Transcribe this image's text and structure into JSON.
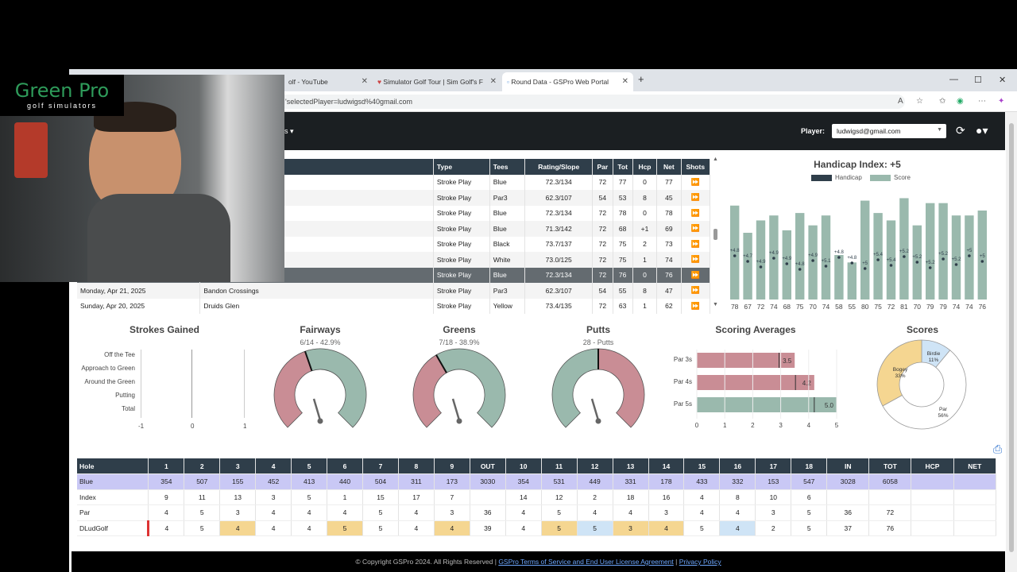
{
  "browser": {
    "tabs": [
      {
        "label": "olf - YouTube"
      },
      {
        "label": "Simulator Golf Tour | Sim Golf's F"
      },
      {
        "label": "Round Data - GSPro Web Portal"
      }
    ],
    "url": "'selectedPlayer=ludwigsd%40gmail.com"
  },
  "header": {
    "menu_fragment": "s ▾",
    "player_label": "Player:",
    "player_value": "ludwigsd@gmail.com"
  },
  "overlay": {
    "logo_main": "Green Pro",
    "logo_sub": "golf simulators"
  },
  "rounds": {
    "headers": [
      "Type",
      "Tees",
      "Rating/Slope",
      "Par",
      "Tot",
      "Hcp",
      "Net",
      "Shots"
    ],
    "rows": [
      {
        "date": "",
        "course": "",
        "type": "Stroke Play",
        "tees": "Blue",
        "rating": "72.3/134",
        "par": "72",
        "tot": "77",
        "hcp": "0",
        "net": "77",
        "shots": "⏩"
      },
      {
        "date": "",
        "course": "",
        "type": "Stroke Play",
        "tees": "Par3",
        "rating": "62.3/107",
        "par": "54",
        "tot": "53",
        "hcp": "8",
        "net": "45",
        "shots": "⏩"
      },
      {
        "date": "",
        "course": "",
        "type": "Stroke Play",
        "tees": "Blue",
        "rating": "72.3/134",
        "par": "72",
        "tot": "78",
        "hcp": "0",
        "net": "78",
        "shots": "⏩"
      },
      {
        "date": "",
        "course": "",
        "type": "Stroke Play",
        "tees": "Blue",
        "rating": "71.3/142",
        "par": "72",
        "tot": "68",
        "hcp": "+1",
        "net": "69",
        "shots": "⏩"
      },
      {
        "date": "",
        "course": "",
        "type": "Stroke Play",
        "tees": "Black",
        "rating": "73.7/137",
        "par": "72",
        "tot": "75",
        "hcp": "2",
        "net": "73",
        "shots": "⏩"
      },
      {
        "date": "",
        "course": "",
        "type": "Stroke Play",
        "tees": "White",
        "rating": "73.0/125",
        "par": "72",
        "tot": "75",
        "hcp": "1",
        "net": "74",
        "shots": "⏩"
      },
      {
        "date": "",
        "course": "",
        "type": "Stroke Play",
        "tees": "Blue",
        "rating": "72.3/134",
        "par": "72",
        "tot": "76",
        "hcp": "0",
        "net": "76",
        "shots": "⏩"
      },
      {
        "date": "Monday, Apr 21, 2025",
        "course": "Bandon Crossings",
        "type": "Stroke Play",
        "tees": "Par3",
        "rating": "62.3/107",
        "par": "54",
        "tot": "55",
        "hcp": "8",
        "net": "47",
        "shots": "⏩"
      },
      {
        "date": "Sunday, Apr 20, 2025",
        "course": "Druids Glen",
        "type": "Stroke Play",
        "tees": "Yellow",
        "rating": "73.4/135",
        "par": "72",
        "tot": "63",
        "hcp": "1",
        "net": "62",
        "shots": "⏩"
      }
    ]
  },
  "chart_data": [
    {
      "type": "bar",
      "title": "Handicap Index: +5",
      "legend": [
        "Handicap",
        "Score"
      ],
      "categories": [
        "78",
        "67",
        "72",
        "74",
        "68",
        "75",
        "70",
        "74",
        "58",
        "55",
        "80",
        "75",
        "72",
        "81",
        "70",
        "79",
        "79",
        "74",
        "74",
        "76"
      ],
      "series": [
        {
          "name": "Score",
          "values": [
            78,
            67,
            72,
            74,
            68,
            75,
            70,
            74,
            58,
            55,
            80,
            75,
            72,
            81,
            70,
            79,
            79,
            74,
            74,
            76
          ]
        },
        {
          "name": "Handicap",
          "values": [
            "+4.8",
            "+4.7",
            "+4.9",
            "+4.9",
            "+4.9",
            "+4.8",
            "+4.9",
            "+5.1",
            "+4.8",
            "+4.8",
            "+5",
            "+5.4",
            "+5.4",
            "+5.2",
            "+5.2",
            "+5.2",
            "+5.2",
            "+5.2",
            "+5",
            "+5"
          ]
        }
      ],
      "ylim": [
        40,
        85
      ]
    },
    {
      "type": "bar",
      "title": "Strokes Gained",
      "categories": [
        "Off the Tee",
        "Approach to Green",
        "Around the Green",
        "Putting",
        "Total"
      ],
      "values": [
        0,
        0,
        0,
        0,
        0
      ],
      "xlim": [
        -1,
        1
      ],
      "ticks": [
        "-1",
        "0",
        "1"
      ]
    },
    {
      "type": "gauge",
      "title": "Fairways",
      "subtitle": "6/14 - 42.9%",
      "value": 42.9
    },
    {
      "type": "gauge",
      "title": "Greens",
      "subtitle": "7/18 - 38.9%",
      "value": 38.9
    },
    {
      "type": "gauge",
      "title": "Putts",
      "subtitle": "28 - Putts",
      "value": 28
    },
    {
      "type": "bar",
      "title": "Scoring Averages",
      "categories": [
        "Par 3s",
        "Par 4s",
        "Par 5s"
      ],
      "values": [
        3.5,
        4.2,
        5.0
      ],
      "labels": [
        "3.5",
        "4.2",
        "5.0"
      ],
      "xlim": [
        0,
        5
      ],
      "ticks": [
        "0",
        "1",
        "2",
        "3",
        "4",
        "5"
      ],
      "colors": [
        "#c98d95",
        "#c98d95",
        "#9ab9ad"
      ]
    },
    {
      "type": "pie",
      "title": "Scores",
      "categories": [
        "Birdie",
        "Par",
        "Bogey"
      ],
      "values": [
        11,
        56,
        33
      ],
      "labels": [
        "Birdie\n11%",
        "Par\n56%",
        "Bogey\n33%"
      ],
      "colors": [
        "#cfe4f6",
        "#ffffff",
        "#f5d691"
      ]
    }
  ],
  "scorecard": {
    "header": [
      "Hole",
      "1",
      "2",
      "3",
      "4",
      "5",
      "6",
      "7",
      "8",
      "9",
      "OUT",
      "10",
      "11",
      "12",
      "13",
      "14",
      "15",
      "16",
      "17",
      "18",
      "IN",
      "TOT",
      "HCP",
      "NET"
    ],
    "blue": [
      "Blue",
      "354",
      "507",
      "155",
      "452",
      "413",
      "440",
      "504",
      "311",
      "173",
      "3030",
      "354",
      "531",
      "449",
      "331",
      "178",
      "433",
      "332",
      "153",
      "547",
      "3028",
      "6058",
      "",
      ""
    ],
    "index": [
      "Index",
      "9",
      "11",
      "13",
      "3",
      "5",
      "1",
      "15",
      "17",
      "7",
      "",
      "14",
      "12",
      "2",
      "18",
      "16",
      "4",
      "8",
      "10",
      "6",
      "",
      "",
      "",
      ""
    ],
    "par": [
      "Par",
      "4",
      "5",
      "3",
      "4",
      "4",
      "4",
      "5",
      "4",
      "3",
      "36",
      "4",
      "5",
      "4",
      "4",
      "3",
      "4",
      "4",
      "3",
      "5",
      "36",
      "72",
      "",
      ""
    ],
    "player": [
      "DLudGolf",
      "4",
      "5",
      "4",
      "4",
      "4",
      "5",
      "5",
      "4",
      "4",
      "39",
      "4",
      "5",
      "5",
      "3",
      "4",
      "5",
      "4",
      "2",
      "5",
      "37",
      "76",
      "",
      ""
    ]
  },
  "footer": {
    "copyright": "© Copyright GSPro 2024. All Rights Reserved |",
    "tos": "GSPro Terms of Service and End User License Agreement",
    "sep": "|",
    "privacy": "Privacy Policy"
  }
}
